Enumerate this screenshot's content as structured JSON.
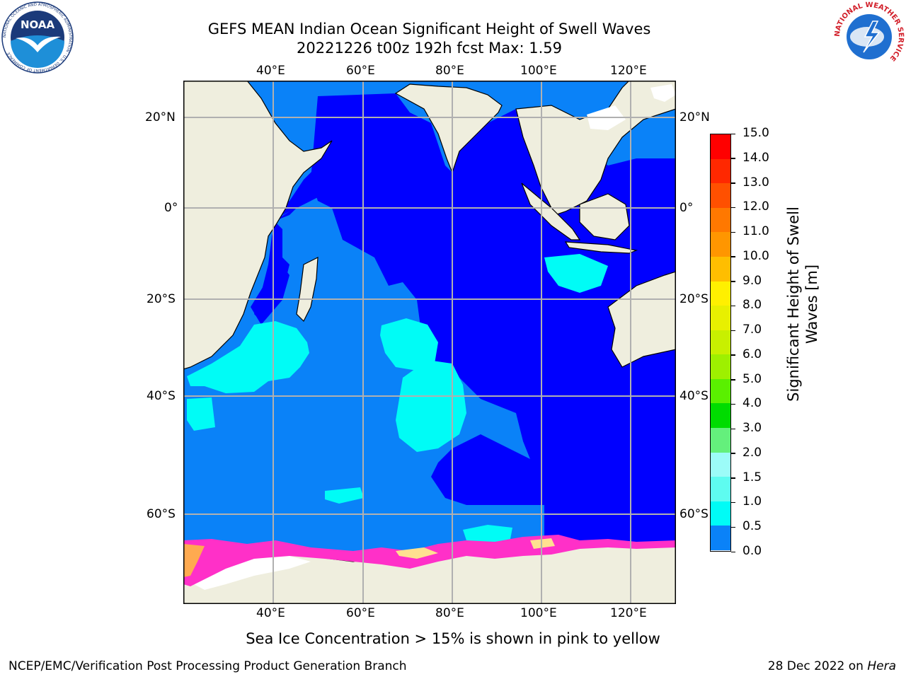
{
  "title": {
    "line1": "GEFS MEAN Indian Ocean Significant Height of Swell Waves",
    "line2": "20221226 t00z 192h fcst   Max: 1.59"
  },
  "map": {
    "lon_labels": [
      "40°E",
      "60°E",
      "80°E",
      "100°E",
      "120°E"
    ],
    "lat_labels": [
      "20°N",
      "0°",
      "20°S",
      "40°S",
      "60°S"
    ],
    "land_color": "#efeede",
    "grid_color": "#b0b0b0"
  },
  "colorbar": {
    "label_line1": "Significant Height of Swell",
    "label_line2": "Waves [m]",
    "ticks": [
      "15.0",
      "14.0",
      "13.0",
      "12.0",
      "11.0",
      "10.0",
      "9.0",
      "8.0",
      "7.0",
      "6.0",
      "5.0",
      "4.0",
      "3.0",
      "2.0",
      "1.5",
      "1.0",
      "0.5",
      "0.0"
    ],
    "colors": [
      "#ff0000",
      "#ff2800",
      "#ff5000",
      "#ff7800",
      "#ff9600",
      "#ffbe00",
      "#fff000",
      "#e8f000",
      "#c8f000",
      "#9ef000",
      "#5af000",
      "#00dc00",
      "#64f07c",
      "#9cfcf8",
      "#5efcf0",
      "#00fcf6",
      "#0a82f8",
      "#0000ff"
    ]
  },
  "note": "Sea Ice Concentration > 15% is shown in pink to yellow",
  "footer": {
    "left": "NCEP/EMC/Verification Post Processing Product Generation Branch",
    "right_date": "28 Dec 2022 on ",
    "right_host": "Hera"
  },
  "logos": {
    "noaa_text": "NOAA",
    "noaa_ring": "NATIONAL OCEANIC AND ATMOSPHERIC ADMINISTRATION · U.S. DEPARTMENT OF COMMERCE",
    "nws_ring": "NATIONAL WEATHER SERVICE"
  }
}
